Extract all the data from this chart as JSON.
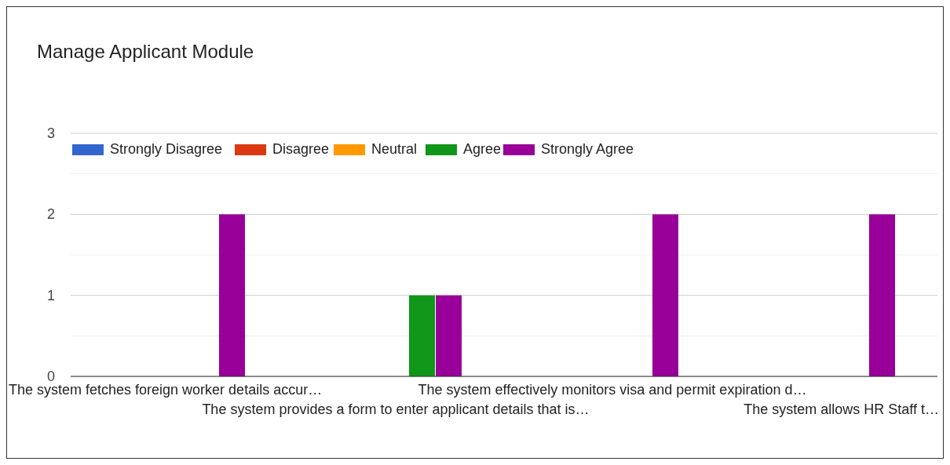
{
  "chart_data": {
    "type": "bar",
    "title": "Manage Applicant Module",
    "categories": [
      "The system fetches foreign worker details accur…",
      "The system provides a form to enter applicant details that is…",
      "The system effectively monitors visa and permit expiration d…",
      "The system allows HR Staff t…"
    ],
    "series": [
      {
        "name": "Strongly Disagree",
        "color": "#3366cc",
        "values": [
          0,
          0,
          0,
          0
        ]
      },
      {
        "name": "Disagree",
        "color": "#dc3912",
        "values": [
          0,
          0,
          0,
          0
        ]
      },
      {
        "name": "Neutral",
        "color": "#ff9900",
        "values": [
          0,
          0,
          0,
          0
        ]
      },
      {
        "name": "Agree",
        "color": "#109618",
        "values": [
          0,
          1,
          0,
          0
        ]
      },
      {
        "name": "Strongly Agree",
        "color": "#990099",
        "values": [
          2,
          1,
          2,
          2
        ]
      }
    ],
    "ylim": [
      0,
      3
    ],
    "yticks": [
      0,
      {
        "value": 0.5,
        "label": null
      },
      1,
      {
        "value": 1.5,
        "label": null
      },
      2,
      {
        "value": 2.5,
        "label": null
      },
      3
    ],
    "grid": true,
    "legend": "top left"
  }
}
